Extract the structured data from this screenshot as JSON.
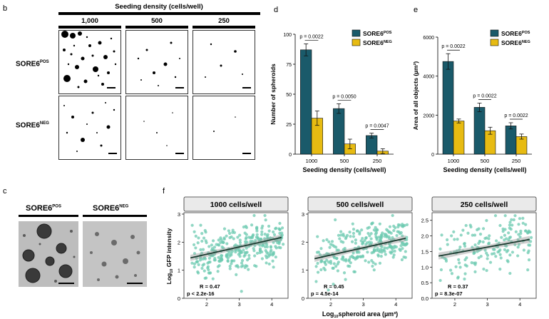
{
  "panels": {
    "b": {
      "letter": "b",
      "title": "Seeding density (cells/well)",
      "columns": [
        "1,000",
        "500",
        "250"
      ],
      "row_pos_main": "SORE6",
      "row_pos_sup": "POS",
      "row_neg_main": "SORE6",
      "row_neg_sup": "NEG"
    },
    "c": {
      "letter": "c",
      "pos_main": "SORE6",
      "pos_sup": "POS",
      "neg_main": "SORE6",
      "neg_sup": "NEG"
    },
    "d_letter": "d",
    "e_letter": "e",
    "f_letter": "f"
  },
  "colors": {
    "pos": "#1a5a6a",
    "neg": "#e7bb12",
    "scatter": "#6ccab0",
    "line": "#1b3a2f"
  },
  "chart_data": [
    {
      "id": "d",
      "type": "bar",
      "title": "",
      "xlabel": "Seeding density (cells/well)",
      "ylabel": "Number of spheroids",
      "categories": [
        "1000",
        "500",
        "250"
      ],
      "ylim": [
        0,
        100
      ],
      "yticks": [
        "0",
        "25",
        "50",
        "75",
        "100"
      ],
      "legend": [
        {
          "main": "SORE6",
          "sup": "POS"
        },
        {
          "main": "SORE6",
          "sup": "NEG"
        }
      ],
      "series": [
        {
          "name": "SORE6POS",
          "values": [
            87,
            38,
            15.5
          ],
          "errors": [
            5,
            4,
            2
          ]
        },
        {
          "name": "SORE6NEG",
          "values": [
            30,
            8.5,
            2.5
          ],
          "errors": [
            6,
            4,
            2
          ]
        }
      ],
      "pvalues": [
        "p = 0.0022",
        "p = 0.0050",
        "p = 0.0047"
      ]
    },
    {
      "id": "e",
      "type": "bar",
      "title": "",
      "xlabel": "Seeding density (cells/well)",
      "ylabel": "Area of all objects (µm²)",
      "categories": [
        "1000",
        "500",
        "250"
      ],
      "ylim": [
        0,
        6000
      ],
      "yticks": [
        "0",
        "2000",
        "4000",
        "6000"
      ],
      "legend": [
        {
          "main": "SORE6",
          "sup": "POS"
        },
        {
          "main": "SORE6",
          "sup": "NEG"
        }
      ],
      "series": [
        {
          "name": "SORE6POS",
          "values": [
            4750,
            2400,
            1450
          ],
          "errors": [
            400,
            220,
            160
          ]
        },
        {
          "name": "SORE6NEG",
          "values": [
            1700,
            1200,
            900
          ],
          "errors": [
            100,
            180,
            130
          ]
        }
      ],
      "pvalues": [
        "p = 0.0022",
        "p = 0.0022",
        "p = 0.0022"
      ]
    },
    {
      "id": "f1",
      "type": "scatter",
      "title": "1000 cells/well",
      "ylabel": "Log10 GFP intensity",
      "ylabel_main": "Log",
      "ylabel_sub": "10",
      "ylabel_rest": " GFP intensity",
      "xlim": [
        1.3,
        4.5
      ],
      "ylim": [
        0,
        3.0
      ],
      "xticks": [
        "2",
        "3",
        "4"
      ],
      "yticks": [
        "0",
        "1",
        "2",
        "3"
      ],
      "fit": {
        "slope": 0.26,
        "intercept": 1.05
      },
      "r_label": "R = 0.47",
      "p_label": "p < 2.2e-16",
      "n_points": 320,
      "seed": 11
    },
    {
      "id": "f2",
      "type": "scatter",
      "title": "500 cells/well",
      "xlabel_main": "Log",
      "xlabel_sub": "10",
      "xlabel_rest": "spheroid area (µm³)",
      "xlim": [
        1.3,
        4.5
      ],
      "ylim": [
        0,
        3.0
      ],
      "xticks": [
        "2",
        "3",
        "4"
      ],
      "yticks": [
        "0",
        "1",
        "2",
        "3"
      ],
      "fit": {
        "slope": 0.26,
        "intercept": 1.02
      },
      "r_label": "R = 0.45",
      "p_label": "p = 4.5e-14",
      "n_points": 280,
      "seed": 23
    },
    {
      "id": "f3",
      "type": "scatter",
      "title": "250 cells/well",
      "xlim": [
        1.3,
        4.5
      ],
      "ylim": [
        0,
        2.7
      ],
      "xticks": [
        "2",
        "3",
        "4"
      ],
      "yticks": [
        "0.0",
        "0.5",
        "1.0",
        "1.5",
        "2.0",
        "2.5"
      ],
      "fit": {
        "slope": 0.19,
        "intercept": 1.07
      },
      "r_label": "R = 0.37",
      "p_label": "p = 8.3e-07",
      "n_points": 170,
      "seed": 37
    }
  ]
}
